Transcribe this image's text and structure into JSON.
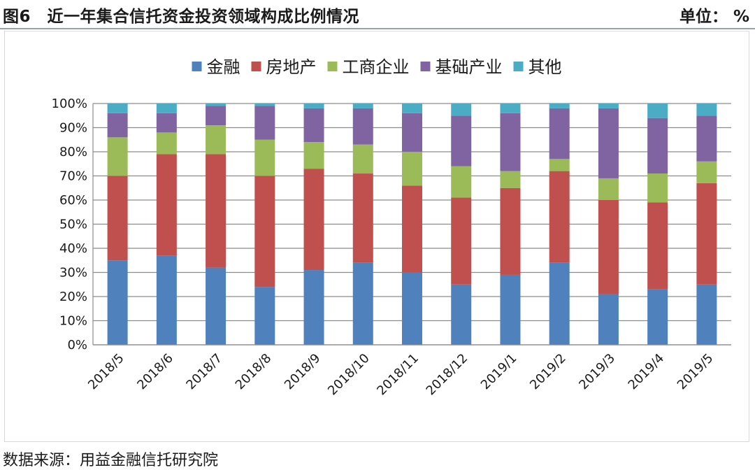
{
  "header": {
    "title": "图6　近一年集合信托资金投资领域构成比例情况",
    "unit": "单位： %"
  },
  "source": "数据来源：用益金融信托研究院",
  "chart_data": {
    "type": "bar",
    "stacked": true,
    "categories": [
      "2018/5",
      "2018/6",
      "2018/7",
      "2018/8",
      "2018/9",
      "2018/10",
      "2018/11",
      "2018/12",
      "2019/1",
      "2019/2",
      "2019/3",
      "2019/4",
      "2019/5"
    ],
    "series": [
      {
        "name": "金融",
        "color": "#4f81bd",
        "values": [
          35,
          37,
          32,
          24,
          31,
          34,
          30,
          25,
          29,
          34,
          21,
          23,
          25
        ]
      },
      {
        "name": "房地产",
        "color": "#c0504d",
        "values": [
          35,
          42,
          47,
          46,
          42,
          37,
          36,
          36,
          36,
          38,
          39,
          36,
          42
        ]
      },
      {
        "name": "工商企业",
        "color": "#9bbb59",
        "values": [
          16,
          9,
          12,
          15,
          11,
          12,
          14,
          13,
          7,
          5,
          9,
          12,
          9
        ]
      },
      {
        "name": "基础产业",
        "color": "#8064a2",
        "values": [
          10,
          8,
          8,
          14,
          14,
          15,
          16,
          21,
          24,
          21,
          29,
          23,
          19
        ]
      },
      {
        "name": "其他",
        "color": "#4bacc6",
        "values": [
          4,
          4,
          1,
          1,
          2,
          2,
          4,
          5,
          4,
          2,
          2,
          6,
          5
        ]
      }
    ],
    "y_ticks": [
      "0%",
      "10%",
      "20%",
      "30%",
      "40%",
      "50%",
      "60%",
      "70%",
      "80%",
      "90%",
      "100%"
    ],
    "ylim": [
      0,
      100
    ],
    "grid": true,
    "legend_position": "top"
  }
}
